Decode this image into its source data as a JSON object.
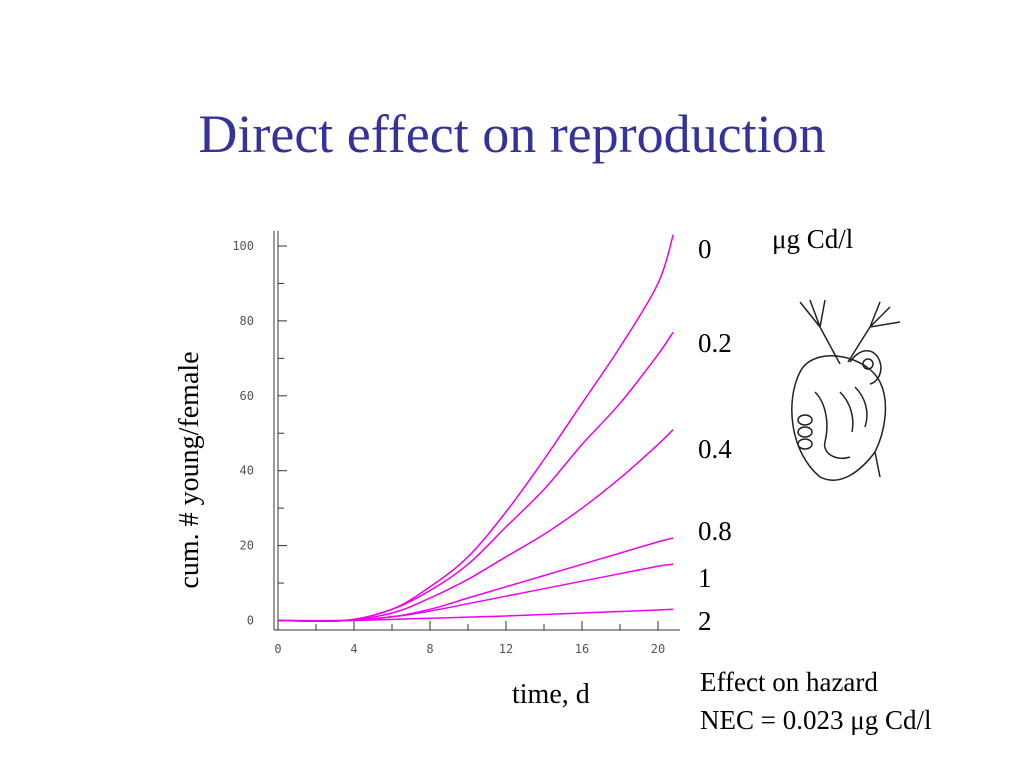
{
  "title": "Direct effect on reproduction",
  "units_label": "μg Cd/l",
  "note": {
    "line1": "Effect on hazard",
    "line2": "NEC = 0.023 μg Cd/l"
  },
  "chart_data": {
    "type": "line",
    "xlabel": "time, d",
    "ylabel": "cum. # young/female",
    "xlim": [
      0,
      21
    ],
    "ylim": [
      -2,
      104
    ],
    "xticks": [
      "0",
      "4",
      "8",
      "12",
      "16",
      "20"
    ],
    "yticks": [
      "0",
      "20",
      "40",
      "60",
      "80",
      "100"
    ],
    "grid": false,
    "line_color": "#ee00ee",
    "series": [
      {
        "name": "0",
        "x": [
          0,
          3.5,
          6,
          8,
          10,
          12,
          14,
          16,
          18,
          20,
          20.8
        ],
        "y": [
          0,
          0,
          3,
          9,
          17,
          29,
          43,
          58,
          73,
          90,
          103
        ]
      },
      {
        "name": "0.2",
        "x": [
          0,
          3.5,
          6,
          8,
          10,
          12,
          14,
          16,
          18,
          20,
          20.8
        ],
        "y": [
          0,
          0,
          3,
          8,
          15,
          25,
          35,
          47,
          58,
          71,
          77
        ]
      },
      {
        "name": "0.4",
        "x": [
          0,
          3.5,
          6,
          8,
          10,
          12,
          14,
          16,
          18,
          20,
          20.8
        ],
        "y": [
          0,
          0,
          2,
          6,
          11,
          17,
          23,
          30,
          38,
          47,
          51
        ]
      },
      {
        "name": "0.8",
        "x": [
          0,
          3.5,
          6,
          8,
          10,
          12,
          14,
          16,
          18,
          20,
          20.8
        ],
        "y": [
          0,
          0,
          1,
          3,
          6,
          9,
          12,
          15,
          18,
          21,
          22
        ]
      },
      {
        "name": "1",
        "x": [
          0,
          3.5,
          6,
          8,
          10,
          12,
          14,
          16,
          18,
          20,
          20.8
        ],
        "y": [
          0,
          0,
          1,
          2.5,
          4.5,
          6.5,
          8.5,
          10.5,
          12.5,
          14.5,
          15
        ]
      },
      {
        "name": "2",
        "x": [
          0,
          3.5,
          6,
          8,
          10,
          12,
          14,
          16,
          18,
          20,
          20.8
        ],
        "y": [
          0,
          0,
          0.3,
          0.6,
          0.9,
          1.2,
          1.6,
          2.0,
          2.4,
          2.8,
          3
        ]
      }
    ]
  }
}
